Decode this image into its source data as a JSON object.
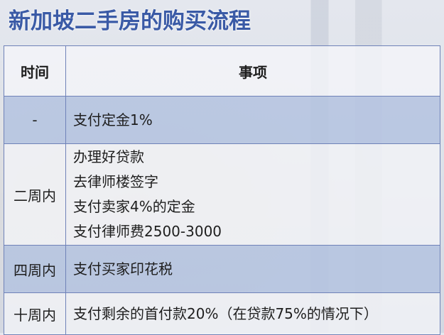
{
  "title": "新加坡二手房的购买流程",
  "table": {
    "headers": [
      "时间",
      "事项"
    ],
    "rows": [
      {
        "time": "-",
        "items": [
          "支付定金1%"
        ]
      },
      {
        "time": "二周内",
        "items": [
          "办理好贷款",
          "去律师楼签字",
          "支付卖家4%的定金",
          "支付律师费2500-3000"
        ]
      },
      {
        "time": "四周内",
        "items": [
          "支付买家印花税"
        ]
      },
      {
        "time": "十周内",
        "items": [
          "支付剩余的首付款20%（在贷款75%的情况下）"
        ]
      }
    ]
  },
  "colors": {
    "title": "#3a5aa6",
    "border": "#6f82b8",
    "highlight_row": "#b4c3e1"
  }
}
